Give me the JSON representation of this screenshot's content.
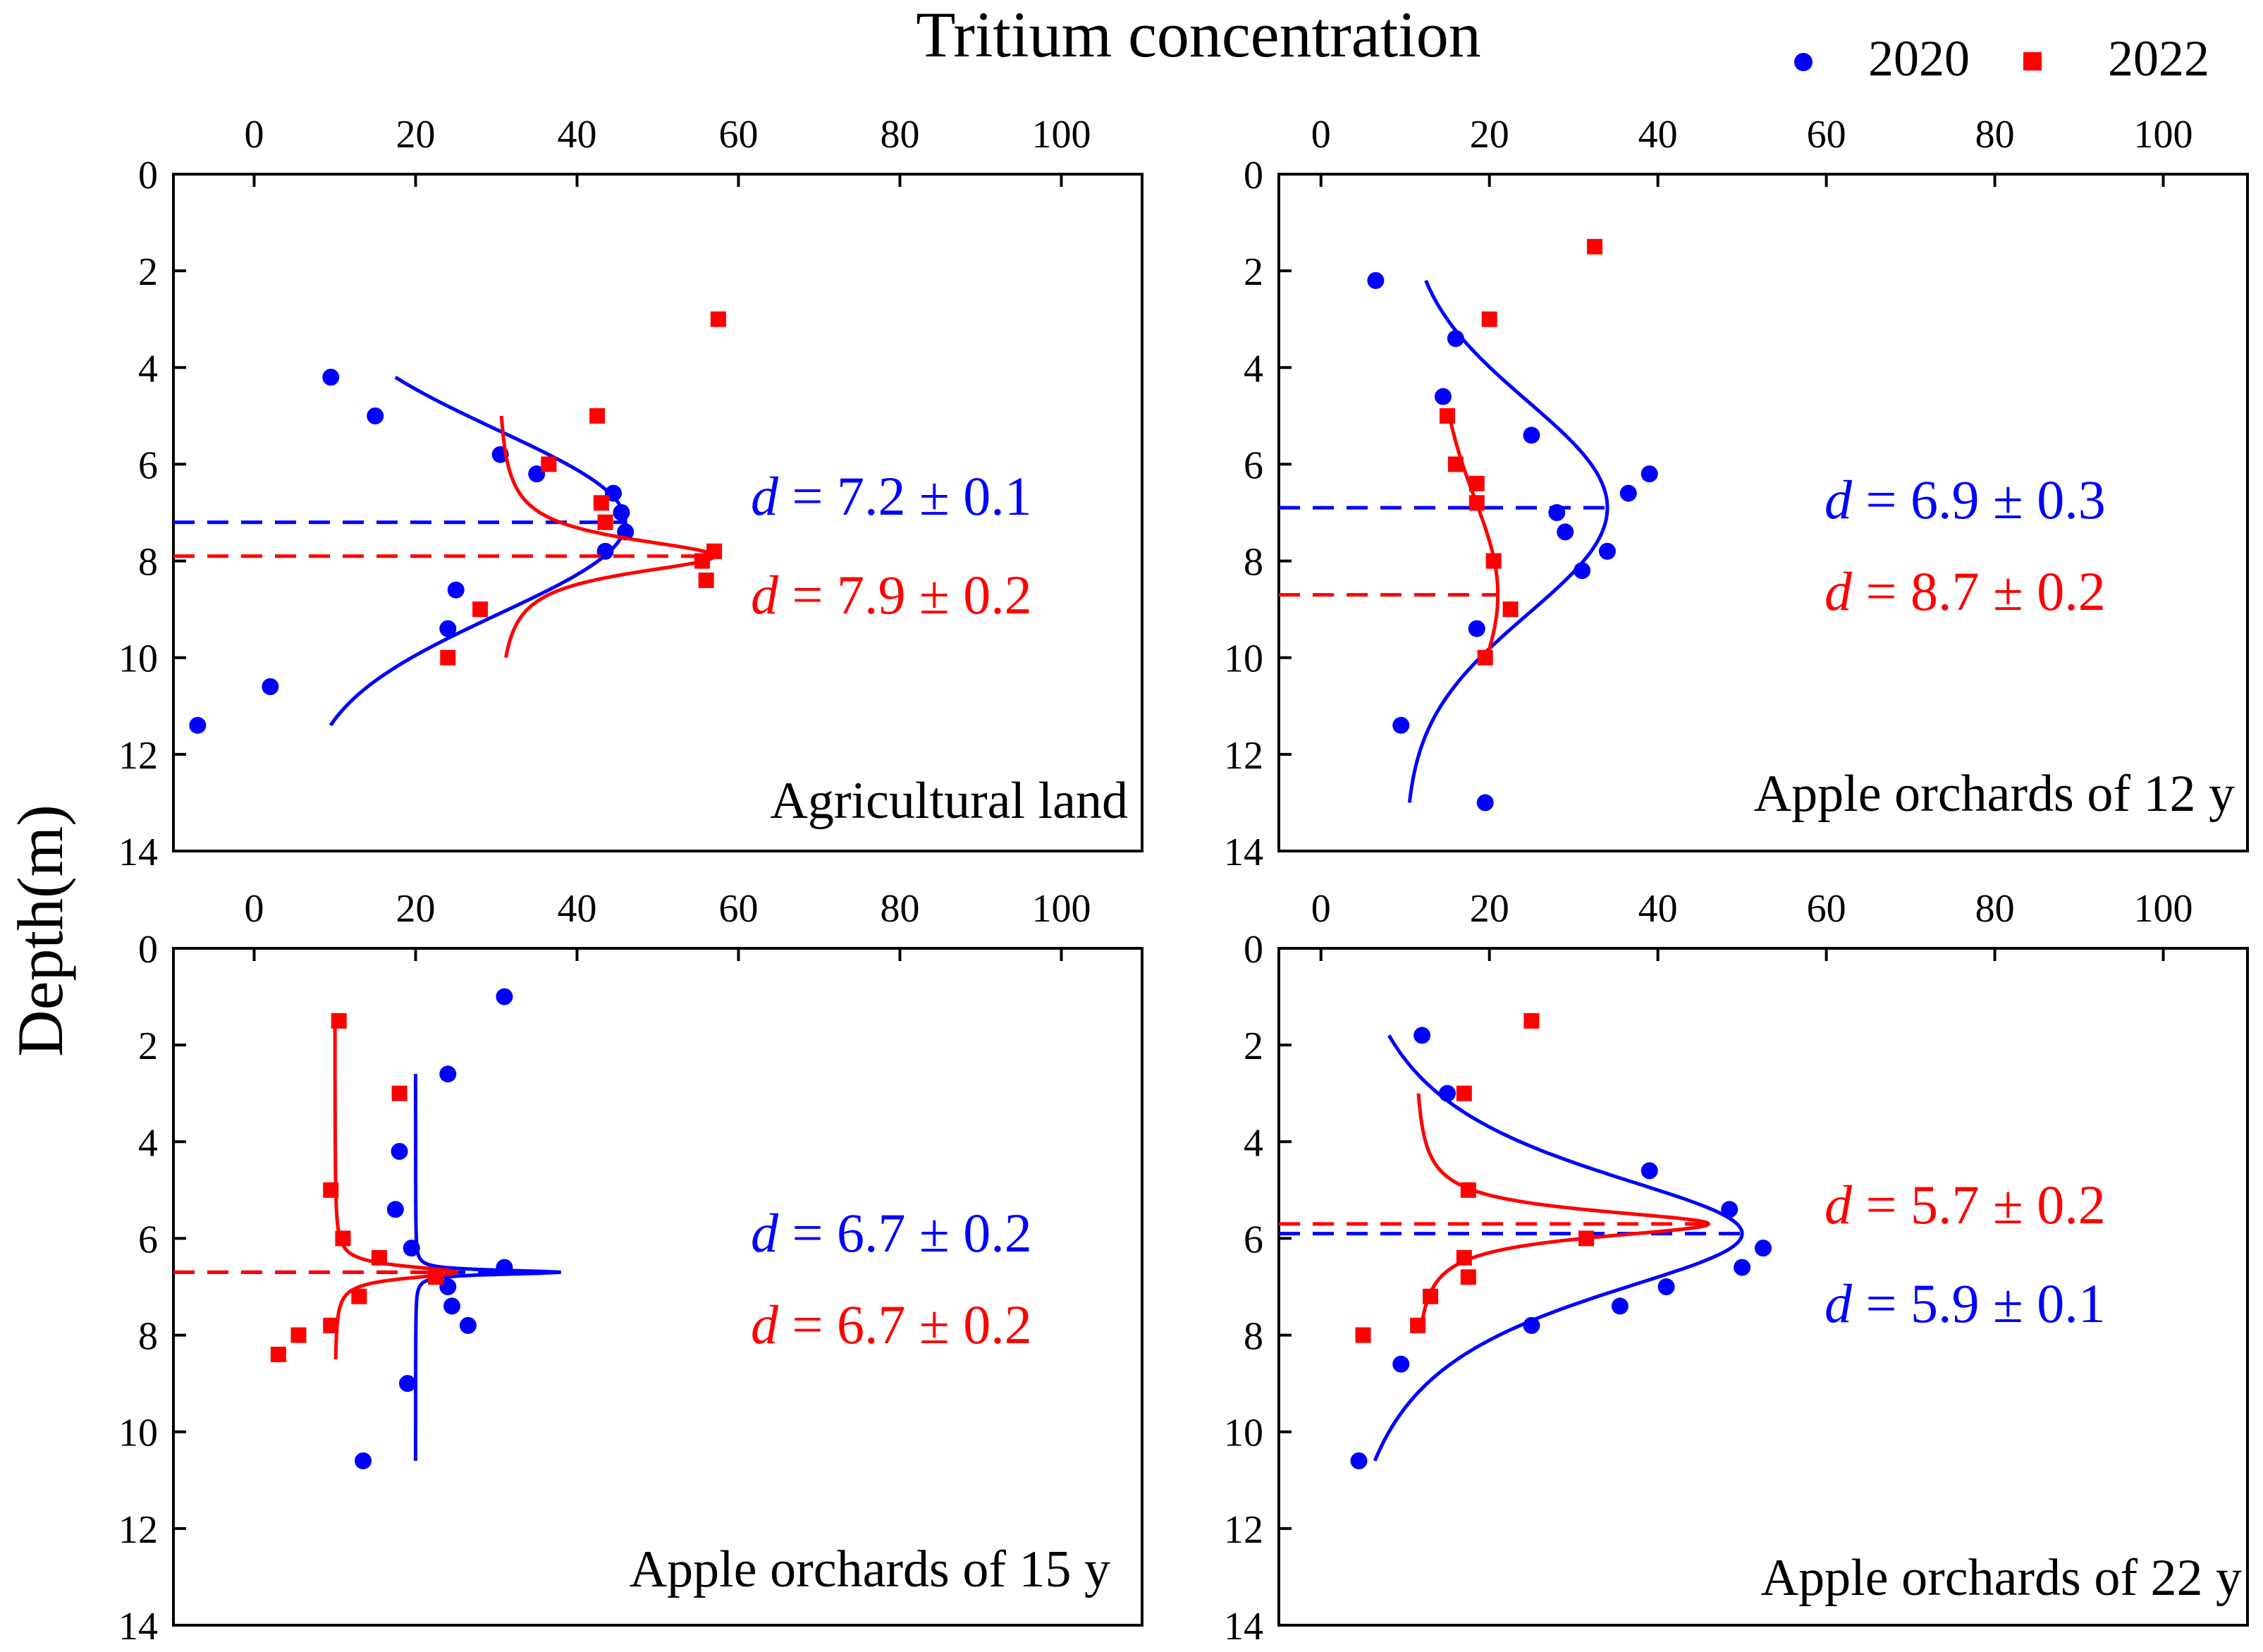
{
  "figure": {
    "title": "Tritium concentration",
    "ylabel": "Depth(m)",
    "legend": [
      {
        "label": "2020",
        "color": "#0000ff",
        "marker": "circle"
      },
      {
        "label": "2022",
        "color": "#ff0000",
        "marker": "square"
      }
    ]
  },
  "chart_data": [
    {
      "type": "scatter",
      "panel": "Agricultural land",
      "xlim": [
        -10,
        110
      ],
      "ylim": [
        0,
        14
      ],
      "xticks": [
        0,
        20,
        40,
        60,
        80,
        100
      ],
      "yticks": [
        0,
        2,
        4,
        6,
        8,
        10,
        12,
        14
      ],
      "series": [
        {
          "name": "2020",
          "color": "#0000ff",
          "points": [
            [
              9.5,
              4.2
            ],
            [
              15,
              5
            ],
            [
              30.5,
              5.8
            ],
            [
              35,
              6.2
            ],
            [
              44.5,
              6.6
            ],
            [
              45.5,
              7
            ],
            [
              46,
              7.4
            ],
            [
              43.5,
              7.8
            ],
            [
              25,
              8.6
            ],
            [
              24,
              9.4
            ],
            [
              2,
              10.6
            ],
            [
              -7,
              11.4
            ]
          ],
          "fit": {
            "kind": "gauss",
            "center": 7.2,
            "amp": 40,
            "base": 6,
            "sigma": 1.9,
            "range": [
              4.2,
              11.4
            ]
          },
          "d_label": "7.2 ± 0.1"
        },
        {
          "name": "2022",
          "color": "#ff0000",
          "points": [
            [
              57.5,
              3
            ],
            [
              42.5,
              5
            ],
            [
              36.5,
              6
            ],
            [
              43,
              6.8
            ],
            [
              43.5,
              7.2
            ],
            [
              57,
              7.8
            ],
            [
              55.5,
              8
            ],
            [
              56,
              8.4
            ],
            [
              28,
              9
            ],
            [
              24,
              10
            ]
          ],
          "fit": {
            "kind": "lorentz",
            "center": 7.9,
            "amp": 27,
            "base": 30,
            "width": 0.45,
            "range": [
              5,
              10
            ]
          },
          "d_label": "7.9 ± 0.2"
        }
      ]
    },
    {
      "type": "scatter",
      "panel": "Apple orchards of 12 y",
      "xlim": [
        -5,
        110
      ],
      "ylim": [
        0,
        14
      ],
      "xticks": [
        0,
        20,
        40,
        60,
        80,
        100
      ],
      "yticks": [
        0,
        2,
        4,
        6,
        8,
        10,
        12,
        14
      ],
      "series": [
        {
          "name": "2020",
          "color": "#0000ff",
          "points": [
            [
              6.5,
              2.2
            ],
            [
              16,
              3.4
            ],
            [
              14.5,
              4.6
            ],
            [
              25,
              5.4
            ],
            [
              39,
              6.2
            ],
            [
              36.5,
              6.6
            ],
            [
              28,
              7
            ],
            [
              29,
              7.4
            ],
            [
              34,
              7.8
            ],
            [
              31,
              8.2
            ],
            [
              18.5,
              9.4
            ],
            [
              9.5,
              11.4
            ],
            [
              19.5,
              13
            ]
          ],
          "fit": {
            "kind": "gauss",
            "center": 6.9,
            "amp": 24,
            "base": 10,
            "sigma": 2.2,
            "range": [
              2.2,
              13
            ]
          },
          "d_label": "6.9 ± 0.3"
        },
        {
          "name": "2022",
          "color": "#ff0000",
          "points": [
            [
              32.5,
              1.5
            ],
            [
              20,
              3
            ],
            [
              15,
              5
            ],
            [
              16,
              6
            ],
            [
              18.5,
              6.4
            ],
            [
              18.5,
              6.8
            ],
            [
              20.5,
              8
            ],
            [
              22.5,
              9
            ],
            [
              19.5,
              10
            ]
          ],
          "fit": {
            "kind": "gauss",
            "center": 8.7,
            "amp": 7,
            "base": 14,
            "sigma": 2,
            "range": [
              5,
              10
            ]
          },
          "d_label": "8.7 ± 0.2"
        }
      ]
    },
    {
      "type": "scatter",
      "panel": "Apple orchards of 15 y",
      "xlim": [
        -10,
        110
      ],
      "ylim": [
        0,
        14
      ],
      "xticks": [
        0,
        20,
        40,
        60,
        80,
        100
      ],
      "yticks": [
        0,
        2,
        4,
        6,
        8,
        10,
        12,
        14
      ],
      "series": [
        {
          "name": "2020",
          "color": "#0000ff",
          "points": [
            [
              31,
              1
            ],
            [
              24,
              2.6
            ],
            [
              18,
              4.2
            ],
            [
              17.5,
              5.4
            ],
            [
              19.5,
              6.2
            ],
            [
              31,
              6.6
            ],
            [
              24,
              7
            ],
            [
              24.5,
              7.4
            ],
            [
              26.5,
              7.8
            ],
            [
              19,
              9
            ],
            [
              13.5,
              10.6
            ]
          ],
          "fit": {
            "kind": "lorentz",
            "center": 6.7,
            "amp": 18,
            "base": 20,
            "width": 0.05,
            "range": [
              2.6,
              10.6
            ]
          },
          "d_label": "6.7 ± 0.2"
        },
        {
          "name": "2022",
          "color": "#ff0000",
          "points": [
            [
              10.5,
              1.5
            ],
            [
              18,
              3
            ],
            [
              9.5,
              5
            ],
            [
              11,
              6
            ],
            [
              15.5,
              6.4
            ],
            [
              22.5,
              6.8
            ],
            [
              13,
              7.2
            ],
            [
              9.5,
              7.8
            ],
            [
              5.5,
              8
            ],
            [
              3,
              8.4
            ]
          ],
          "fit": {
            "kind": "lorentz",
            "center": 6.7,
            "amp": 15,
            "base": 10,
            "width": 0.15,
            "range": [
              1.5,
              8.5
            ]
          },
          "d_label": "6.7 ± 0.2"
        }
      ]
    },
    {
      "type": "scatter",
      "panel": "Apple orchards of 22 y",
      "xlim": [
        -5,
        110
      ],
      "ylim": [
        0,
        14
      ],
      "xticks": [
        0,
        20,
        40,
        60,
        80,
        100
      ],
      "yticks": [
        0,
        2,
        4,
        6,
        8,
        10,
        12,
        14
      ],
      "series": [
        {
          "name": "2020",
          "color": "#0000ff",
          "points": [
            [
              12,
              1.8
            ],
            [
              15,
              3
            ],
            [
              39,
              4.6
            ],
            [
              48.5,
              5.4
            ],
            [
              52.5,
              6.2
            ],
            [
              50,
              6.6
            ],
            [
              41,
              7
            ],
            [
              35.5,
              7.4
            ],
            [
              25,
              7.8
            ],
            [
              9.5,
              8.6
            ],
            [
              4.5,
              10.6
            ]
          ],
          "fit": {
            "kind": "lorentz",
            "center": 5.9,
            "amp": 50,
            "base": 0,
            "width": 1.8,
            "range": [
              1.8,
              10.6
            ]
          },
          "d_label": "5.9 ± 0.1"
        },
        {
          "name": "2022",
          "color": "#ff0000",
          "points": [
            [
              25,
              1.5
            ],
            [
              17,
              3
            ],
            [
              17.5,
              5
            ],
            [
              31.5,
              6
            ],
            [
              17,
              6.4
            ],
            [
              17.5,
              6.8
            ],
            [
              13,
              7.2
            ],
            [
              11.5,
              7.8
            ],
            [
              5,
              8
            ]
          ],
          "fit": {
            "kind": "lorentz",
            "center": 5.7,
            "amp": 35,
            "base": 11,
            "width": 0.35,
            "range": [
              3,
              7.8
            ]
          },
          "d_label": "5.7 ± 0.2"
        }
      ]
    }
  ]
}
